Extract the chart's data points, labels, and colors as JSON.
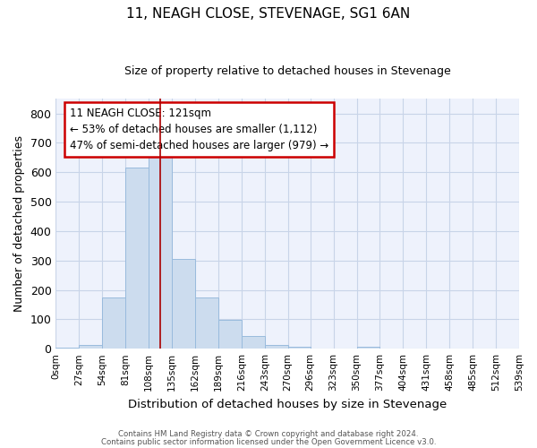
{
  "title": "11, NEAGH CLOSE, STEVENAGE, SG1 6AN",
  "subtitle": "Size of property relative to detached houses in Stevenage",
  "xlabel": "Distribution of detached houses by size in Stevenage",
  "ylabel": "Number of detached properties",
  "annotation_line1": "11 NEAGH CLOSE: 121sqm",
  "annotation_line2": "← 53% of detached houses are smaller (1,112)",
  "annotation_line3": "47% of semi-detached houses are larger (979) →",
  "property_size_sqm": 121,
  "bar_color": "#ccdcee",
  "bar_edge_color": "#99bbdd",
  "marker_line_color": "#aa0000",
  "grid_color": "#c8d4e8",
  "background_color": "#eef2fc",
  "bins": [
    0,
    27,
    54,
    81,
    108,
    135,
    162,
    189,
    216,
    243,
    270,
    296,
    323,
    350,
    377,
    404,
    431,
    458,
    485,
    512,
    539
  ],
  "bin_labels": [
    "0sqm",
    "27sqm",
    "54sqm",
    "81sqm",
    "108sqm",
    "135sqm",
    "162sqm",
    "189sqm",
    "216sqm",
    "243sqm",
    "270sqm",
    "296sqm",
    "323sqm",
    "350sqm",
    "377sqm",
    "404sqm",
    "431sqm",
    "458sqm",
    "485sqm",
    "512sqm",
    "539sqm"
  ],
  "counts": [
    5,
    12,
    175,
    615,
    655,
    305,
    175,
    97,
    42,
    12,
    8,
    2,
    0,
    7,
    0,
    0,
    0,
    0,
    0,
    0
  ],
  "ylim": [
    0,
    850
  ],
  "yticks": [
    0,
    100,
    200,
    300,
    400,
    500,
    600,
    700,
    800
  ],
  "footer_line1": "Contains HM Land Registry data © Crown copyright and database right 2024.",
  "footer_line2": "Contains public sector information licensed under the Open Government Licence v3.0."
}
